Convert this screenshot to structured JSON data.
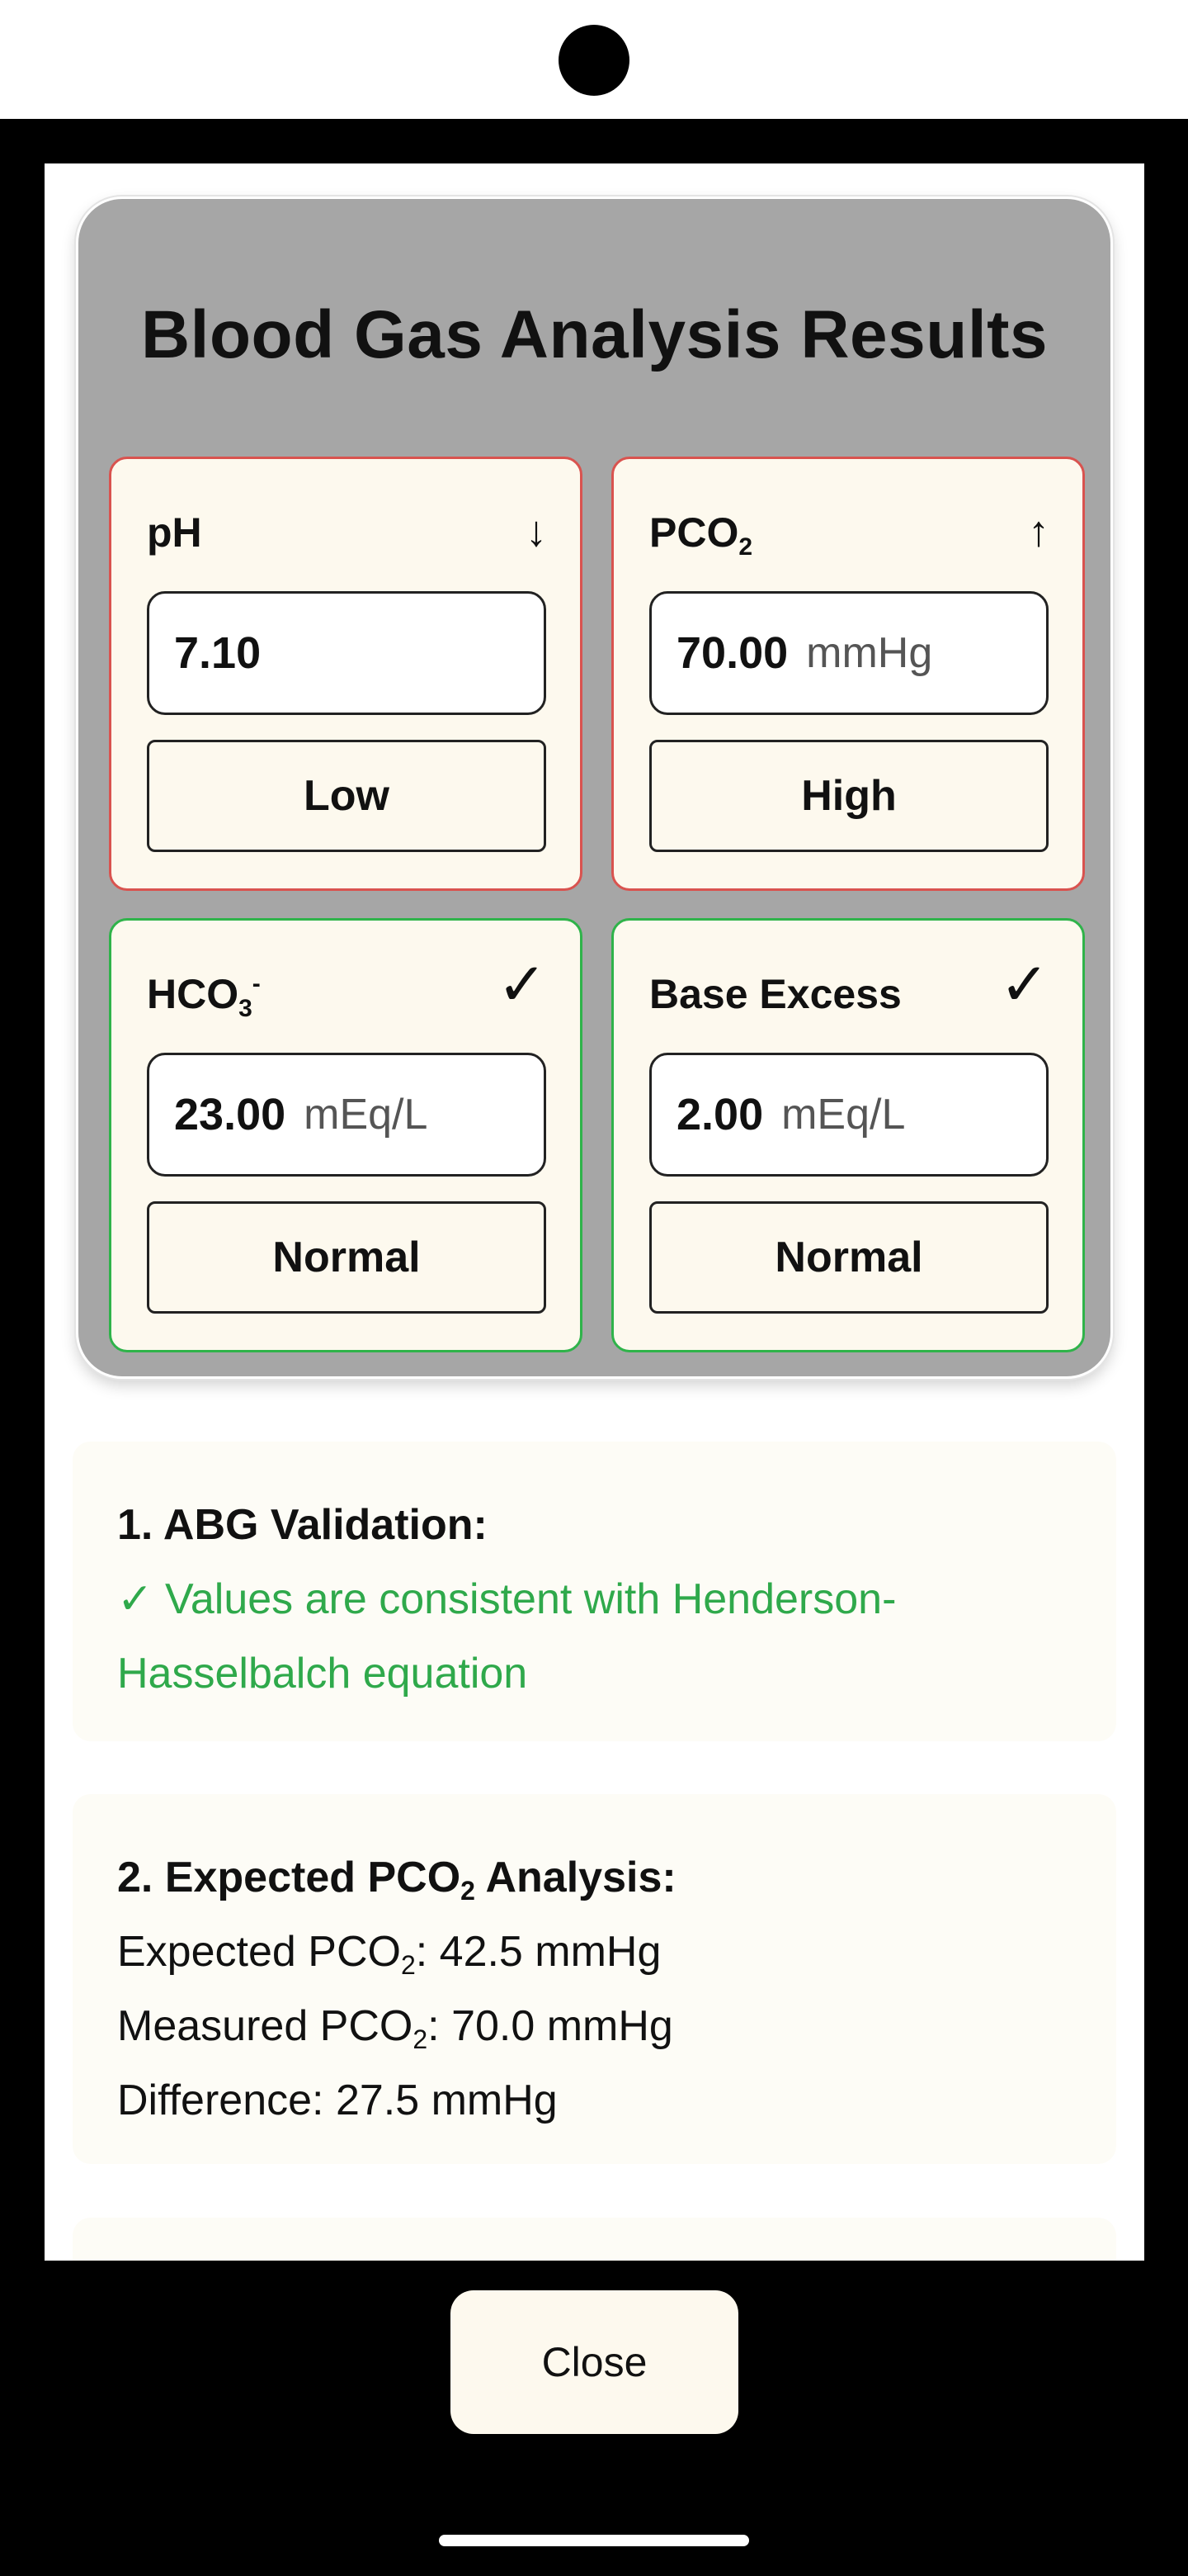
{
  "dialog": {
    "title": "Blood Gas Analysis Results",
    "parameters": [
      {
        "name": "pH",
        "trend": "↓",
        "value": "7.10",
        "unit": "",
        "status": "Low"
      },
      {
        "name": "PCO",
        "name_sub": "2",
        "trend": "↑",
        "value": "70.00",
        "unit": "mmHg",
        "status": "High"
      },
      {
        "name": "HCO",
        "name_sub": "3",
        "name_sup": "-",
        "trend": "✓",
        "value": "23.00",
        "unit": "mEq/L",
        "status": "Normal"
      },
      {
        "name": "Base Excess",
        "trend": "✓",
        "value": "2.00",
        "unit": "mEq/L",
        "status": "Normal"
      }
    ],
    "status_colors": {
      "abnormal": "#d9534f",
      "normal": "#2fb34a"
    }
  },
  "analysis": {
    "validation": {
      "heading": "1. ABG Validation:",
      "line1": "✓ Values are consistent with Henderson-",
      "line2": "Hasselbalch equation"
    },
    "expected_pco2": {
      "heading_pre": "2. Expected PCO",
      "heading_sub": "2",
      "heading_post": " Analysis:",
      "expected_label": "Expected PCO",
      "expected_value": ": 42.5 mmHg",
      "measured_label": "Measured PCO",
      "measured_value": ": 70.0 mmHg",
      "difference": "Difference: 27.5 mmHg"
    }
  },
  "footer": {
    "close_label": "Close"
  }
}
